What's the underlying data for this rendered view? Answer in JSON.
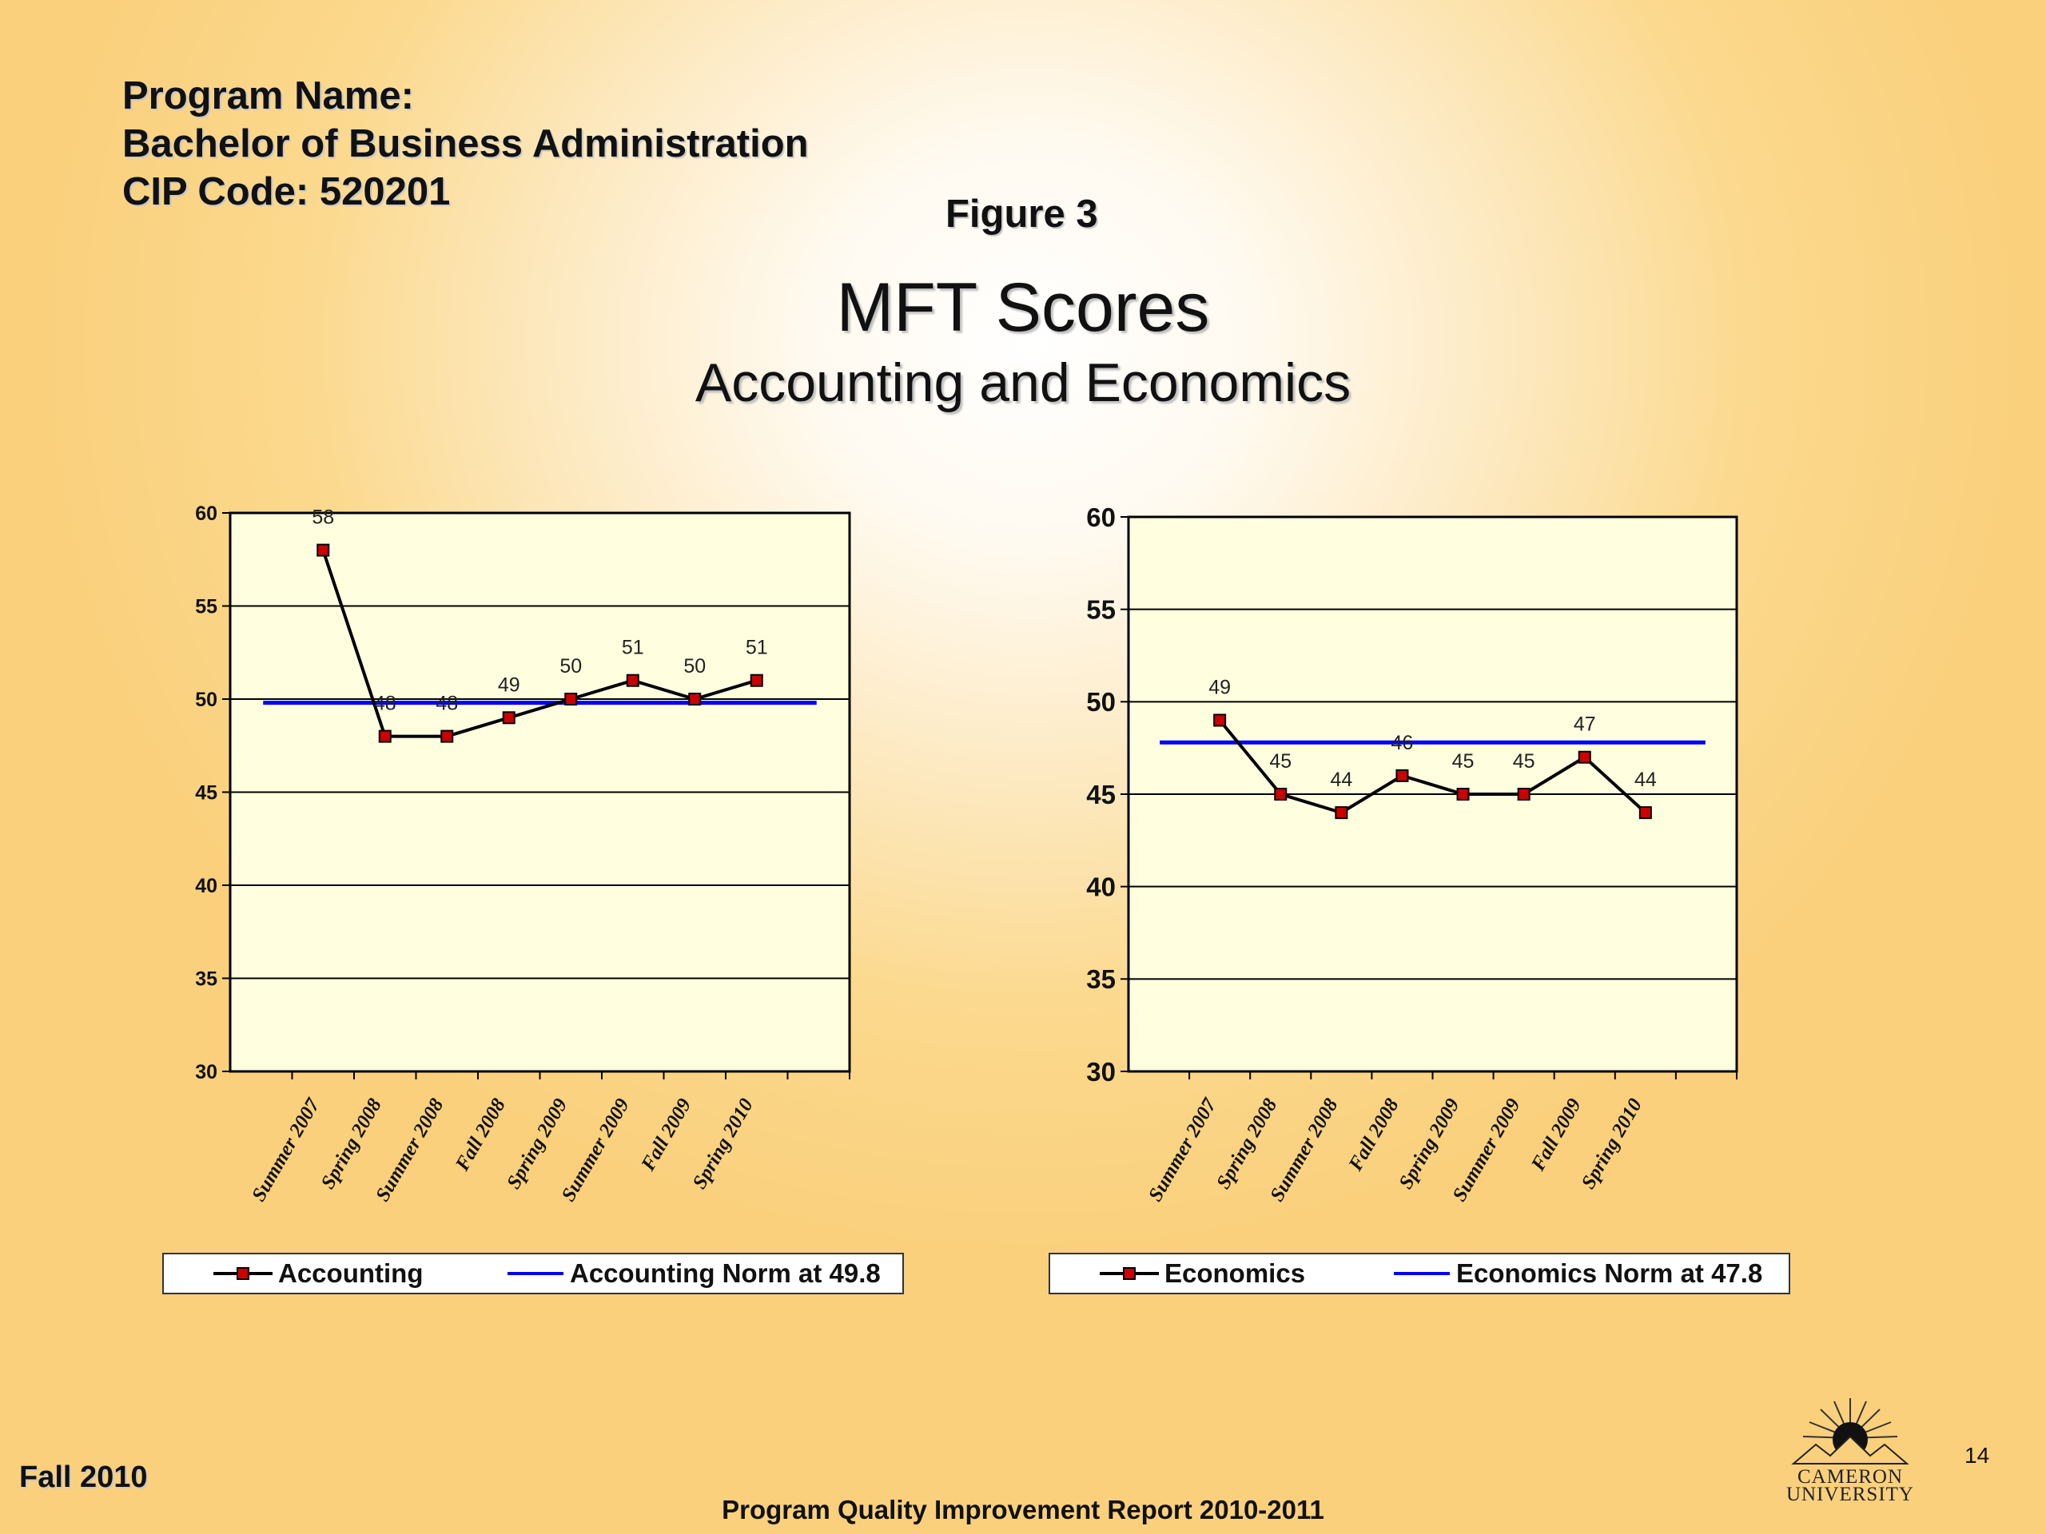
{
  "header": {
    "line1": "Program Name:",
    "line2": "Bachelor of Business Administration",
    "line3": "CIP Code: 520201"
  },
  "figure_label": "Figure 3",
  "title": "MFT Scores",
  "subtitle": "Accounting and Economics",
  "footer": {
    "left": "Fall 2010",
    "center": "Program Quality Improvement Report 2010-2011",
    "page_number": "14"
  },
  "logo": {
    "line1": "CAMERON",
    "line2": "UNIVERSITY"
  },
  "colors": {
    "series": "#000000",
    "marker": "#cc0000",
    "norm": "#0000ff"
  },
  "chart_data": [
    {
      "type": "line",
      "categories": [
        "Summer 2007",
        "Spring 2008",
        "Summer 2008",
        "Fall 2008",
        "Spring 2009",
        "Summer 2009",
        "Fall 2009",
        "Spring 2010"
      ],
      "series": [
        {
          "name": "Accounting",
          "values": [
            58,
            48,
            48,
            49,
            50,
            51,
            50,
            51
          ],
          "data_labels": [
            "58",
            "48",
            "48",
            "49",
            "50",
            "51",
            "50",
            "51"
          ]
        },
        {
          "name": "Accounting Norm at 49.8",
          "values": [
            49.8,
            49.8,
            49.8,
            49.8,
            49.8,
            49.8,
            49.8,
            49.8
          ]
        }
      ],
      "ylim": [
        30,
        60
      ],
      "yticks": [
        30,
        35,
        40,
        45,
        50,
        55,
        60
      ],
      "grid": true,
      "legend": "bottom"
    },
    {
      "type": "line",
      "categories": [
        "Summer 2007",
        "Spring 2008",
        "Summer 2008",
        "Fall 2008",
        "Spring 2009",
        "Summer 2009",
        "Fall 2009",
        "Spring 2010"
      ],
      "series": [
        {
          "name": "Economics",
          "values": [
            49,
            45,
            44,
            46,
            45,
            45,
            47,
            44
          ],
          "data_labels": [
            "49",
            "45",
            "44",
            "46",
            "45",
            "45",
            "47",
            "44"
          ]
        },
        {
          "name": "Economics Norm at 47.8",
          "values": [
            47.8,
            47.8,
            47.8,
            47.8,
            47.8,
            47.8,
            47.8,
            47.8
          ]
        }
      ],
      "ylim": [
        30,
        60
      ],
      "yticks": [
        30,
        35,
        40,
        45,
        50,
        55,
        60
      ],
      "grid": true,
      "legend": "bottom"
    }
  ]
}
